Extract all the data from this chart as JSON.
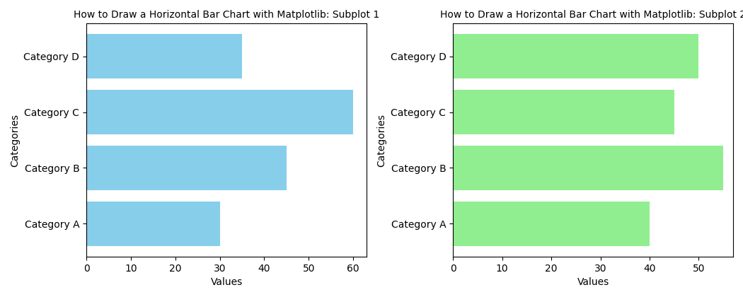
{
  "categories": [
    "Category A",
    "Category B",
    "Category C",
    "Category D"
  ],
  "values1": [
    30,
    45,
    60,
    35
  ],
  "values2": [
    40,
    55,
    45,
    50
  ],
  "color1": "#87CEEB",
  "color2": "#90EE90",
  "title1": "How to Draw a Horizontal Bar Chart with Matplotlib: Subplot 1",
  "title2": "How to Draw a Horizontal Bar Chart with Matplotlib: Subplot 2",
  "xlabel": "Values",
  "ylabel": "Categories",
  "xlim1": [
    0,
    63
  ],
  "xlim2": [
    0,
    57
  ],
  "xticks1": [
    0,
    10,
    20,
    30,
    40,
    50,
    60
  ],
  "xticks2": [
    0,
    10,
    20,
    30,
    40,
    50
  ]
}
